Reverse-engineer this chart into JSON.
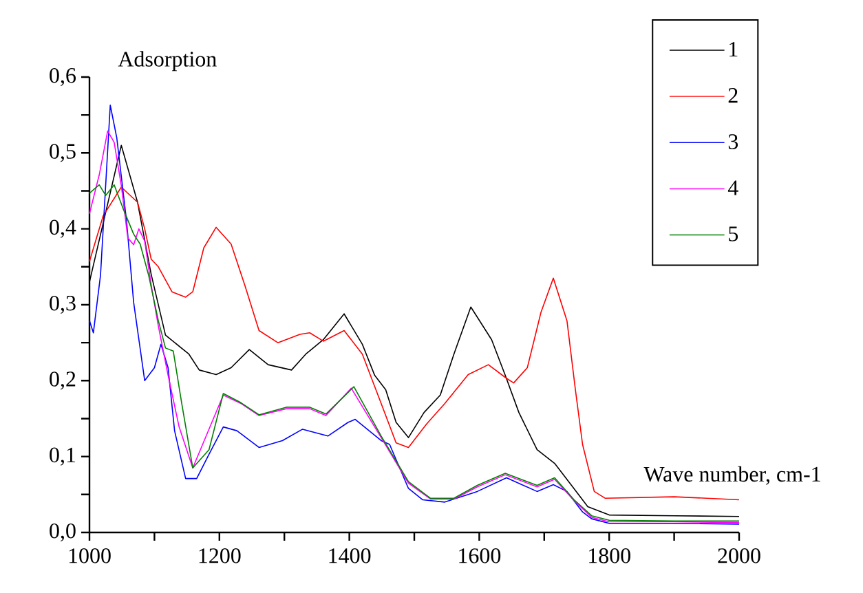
{
  "chart_data": {
    "type": "line",
    "xlabel": "Wave number, cm-1",
    "ylabel": "Adsorption",
    "xlim": [
      1000,
      2000
    ],
    "ylim": [
      0,
      0.6
    ],
    "xticks": [
      1000,
      {
        "value": 1100,
        "label": null
      },
      1200,
      {
        "value": 1300,
        "label": null
      },
      1400,
      {
        "value": 1500,
        "label": null
      },
      1600,
      {
        "value": 1700,
        "label": null
      },
      1800,
      {
        "value": 1900,
        "label": null
      },
      2000
    ],
    "yticks": [
      {
        "value": 0,
        "label": "0,0"
      },
      {
        "value": 0.05,
        "label": null
      },
      {
        "value": 0.1,
        "label": "0,1"
      },
      {
        "value": 0.15,
        "label": null
      },
      {
        "value": 0.2,
        "label": "0,2"
      },
      {
        "value": 0.25,
        "label": null
      },
      {
        "value": 0.3,
        "label": "0,3"
      },
      {
        "value": 0.35,
        "label": null
      },
      {
        "value": 0.4,
        "label": "0,4"
      },
      {
        "value": 0.45,
        "label": null
      },
      {
        "value": 0.5,
        "label": "0,5"
      },
      {
        "value": 0.55,
        "label": null
      },
      {
        "value": 0.6,
        "label": "0,6"
      }
    ],
    "legend": "top right",
    "marker": "none",
    "grid": false,
    "series": [
      {
        "name": "1",
        "color": "#000000",
        "x": [
          1000,
          1049,
          1074,
          1095,
          1117,
          1153,
          1169,
          1195,
          1218,
          1246,
          1275,
          1311,
          1333,
          1360,
          1392,
          1420,
          1439,
          1456,
          1472,
          1491,
          1515,
          1540,
          1561,
          1587,
          1619,
          1640,
          1661,
          1689,
          1716,
          1742,
          1767,
          1800,
          1900,
          2000
        ],
        "values": [
          0.33,
          0.51,
          0.435,
          0.34,
          0.26,
          0.235,
          0.214,
          0.208,
          0.217,
          0.241,
          0.221,
          0.214,
          0.235,
          0.254,
          0.288,
          0.248,
          0.207,
          0.188,
          0.145,
          0.125,
          0.158,
          0.181,
          0.235,
          0.297,
          0.254,
          0.207,
          0.158,
          0.109,
          0.091,
          0.062,
          0.034,
          0.023,
          0.022,
          0.021
        ]
      },
      {
        "name": "2",
        "color": "#ff0000",
        "x": [
          1000,
          1021,
          1049,
          1074,
          1085,
          1095,
          1106,
          1127,
          1148,
          1159,
          1176,
          1195,
          1218,
          1239,
          1261,
          1290,
          1324,
          1339,
          1360,
          1392,
          1420,
          1449,
          1472,
          1491,
          1519,
          1547,
          1583,
          1614,
          1642,
          1653,
          1674,
          1695,
          1714,
          1735,
          1748,
          1759,
          1777,
          1794,
          1900,
          2000
        ],
        "values": [
          0.357,
          0.417,
          0.455,
          0.435,
          0.4,
          0.36,
          0.35,
          0.317,
          0.31,
          0.317,
          0.375,
          0.402,
          0.38,
          0.326,
          0.266,
          0.25,
          0.261,
          0.263,
          0.252,
          0.266,
          0.235,
          0.17,
          0.118,
          0.112,
          0.143,
          0.17,
          0.208,
          0.221,
          0.203,
          0.197,
          0.217,
          0.29,
          0.335,
          0.279,
          0.188,
          0.116,
          0.054,
          0.045,
          0.047,
          0.043
        ]
      },
      {
        "name": "3",
        "color": "#0000ff",
        "x": [
          1000,
          1006,
          1017,
          1032,
          1042,
          1057,
          1068,
          1085,
          1100,
          1110,
          1121,
          1131,
          1148,
          1165,
          1184,
          1206,
          1227,
          1261,
          1297,
          1328,
          1367,
          1398,
          1409,
          1449,
          1462,
          1491,
          1513,
          1547,
          1597,
          1642,
          1689,
          1714,
          1735,
          1759,
          1773,
          1800,
          1900,
          2000
        ],
        "values": [
          0.279,
          0.263,
          0.339,
          0.563,
          0.52,
          0.411,
          0.303,
          0.2,
          0.217,
          0.248,
          0.217,
          0.134,
          0.071,
          0.071,
          0.103,
          0.139,
          0.134,
          0.112,
          0.121,
          0.136,
          0.127,
          0.145,
          0.149,
          0.121,
          0.116,
          0.058,
          0.043,
          0.04,
          0.054,
          0.072,
          0.054,
          0.063,
          0.054,
          0.027,
          0.018,
          0.012,
          0.012,
          0.011
        ]
      },
      {
        "name": "4",
        "color": "#ff00ff",
        "x": [
          1000,
          1015,
          1028,
          1038,
          1049,
          1059,
          1068,
          1076,
          1085,
          1095,
          1106,
          1121,
          1138,
          1159,
          1184,
          1206,
          1233,
          1261,
          1303,
          1339,
          1364,
          1403,
          1449,
          1491,
          1525,
          1561,
          1597,
          1640,
          1689,
          1716,
          1746,
          1773,
          1800,
          1900,
          2000
        ],
        "values": [
          0.42,
          0.471,
          0.529,
          0.514,
          0.457,
          0.388,
          0.379,
          0.4,
          0.384,
          0.326,
          0.272,
          0.207,
          0.139,
          0.085,
          null,
          0.181,
          0.17,
          0.154,
          0.163,
          0.163,
          0.154,
          0.19,
          0.125,
          0.065,
          0.044,
          0.044,
          0.06,
          0.076,
          0.06,
          0.07,
          0.042,
          0.02,
          0.014,
          0.014,
          0.013
        ]
      },
      {
        "name": "5",
        "color": "#008000",
        "x": [
          1000,
          1015,
          1025,
          1038,
          1053,
          1068,
          1078,
          1091,
          1106,
          1117,
          1129,
          1142,
          1159,
          1184,
          1206,
          1233,
          1261,
          1303,
          1339,
          1364,
          1407,
          1449,
          1491,
          1525,
          1561,
          1597,
          1640,
          1689,
          1716,
          1746,
          1773,
          1800,
          1900,
          2000
        ],
        "values": [
          0.447,
          0.458,
          0.444,
          0.458,
          0.424,
          0.393,
          0.38,
          0.339,
          0.279,
          0.243,
          0.239,
          0.17,
          0.085,
          0.109,
          0.183,
          0.171,
          0.155,
          0.165,
          0.165,
          0.156,
          0.192,
          0.127,
          0.067,
          0.045,
          0.045,
          0.062,
          0.078,
          0.062,
          0.072,
          0.043,
          0.022,
          0.016,
          0.015,
          0.015
        ]
      }
    ]
  }
}
